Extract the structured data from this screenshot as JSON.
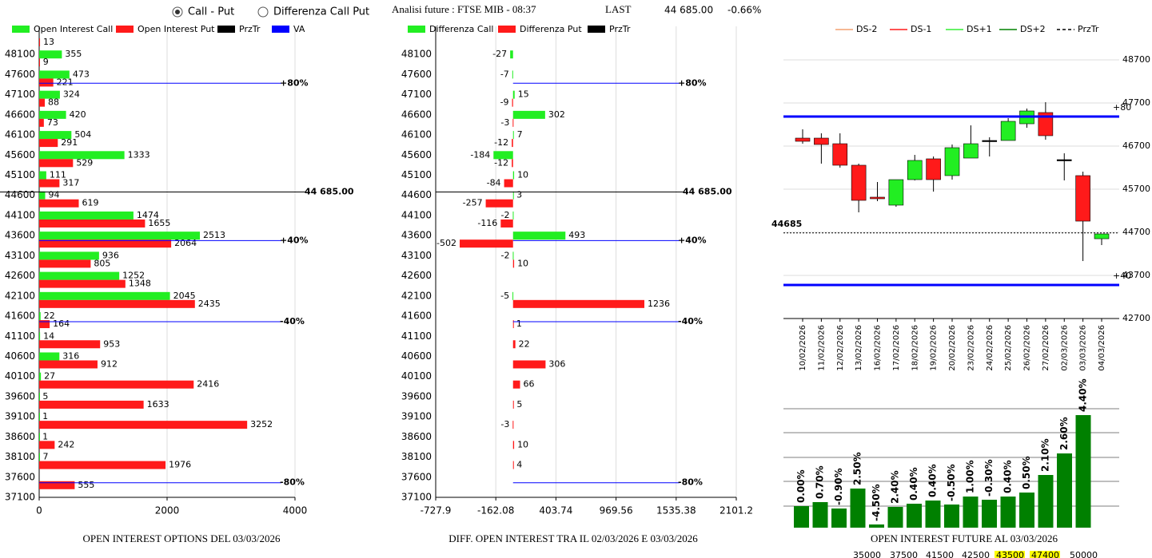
{
  "header": {
    "radio_options": [
      {
        "label": "Call - Put",
        "checked": true
      },
      {
        "label": "Differenza Call Put",
        "checked": false
      }
    ],
    "title": "Analisi future : FTSE MIB - 08:37",
    "last_label": "LAST",
    "last_value": "44 685.00",
    "change": "-0.66%"
  },
  "chart_data": [
    {
      "type": "hbar",
      "title": "OPEN INTEREST OPTIONS DEL 03/03/2026",
      "categories": [
        null,
        "48100",
        "47600",
        "47100",
        "46600",
        "46100",
        "45600",
        "45100",
        "44600",
        "44100",
        "43600",
        "43100",
        "42600",
        "42100",
        "41600",
        "41100",
        "40600",
        "40100",
        "39600",
        "39100",
        "38600",
        "38100",
        "37600",
        "37100"
      ],
      "series": [
        {
          "name": "Open Interest Call",
          "color": "#22ee22",
          "values": [
            null,
            355,
            473,
            324,
            420,
            504,
            1333,
            111,
            94,
            1474,
            2513,
            936,
            1252,
            2045,
            22,
            14,
            316,
            27,
            5,
            1,
            1,
            7,
            null,
            null
          ]
        },
        {
          "name": "Open Interest Put",
          "color": "#ff1a1a",
          "values": [
            13,
            9,
            221,
            88,
            73,
            291,
            529,
            317,
            619,
            1655,
            2064,
            805,
            1348,
            2435,
            164,
            953,
            912,
            2416,
            1633,
            3252,
            242,
            1976,
            555,
            null
          ]
        }
      ],
      "legend_extra": [
        {
          "name": "PrzTr",
          "color": "#000000"
        },
        {
          "name": "VA",
          "color": "#0000ff"
        }
      ],
      "xlim": [
        0,
        4000
      ],
      "xticks": [
        0,
        2000,
        4000
      ],
      "ylim": [
        37100,
        48600
      ],
      "grid": true,
      "ref_lines": [
        {
          "value": 47385,
          "label": "+80%",
          "color": "#0000ff"
        },
        {
          "value": 44685,
          "label": "44 685.00",
          "color": "#000000"
        },
        {
          "value": 43478,
          "label": "+40%",
          "color": "#0000ff"
        },
        {
          "value": 41462,
          "label": "-40%",
          "color": "#0000ff"
        },
        {
          "value": 37462,
          "label": "-80%",
          "color": "#0000ff"
        }
      ]
    },
    {
      "type": "hbar",
      "title": "DIFF. OPEN INTEREST TRA IL 02/03/2026 E 03/03/2026",
      "categories": [
        null,
        "48100",
        "47600",
        "47100",
        "46600",
        "46100",
        "45600",
        "45100",
        "44600",
        "44100",
        "43600",
        "43100",
        "42600",
        "42100",
        "41600",
        "41100",
        "40600",
        "40100",
        "39600",
        "39100",
        "38600",
        "38100",
        "37600",
        "37100"
      ],
      "series": [
        {
          "name": "Differenza Call",
          "color": "#22ee22",
          "values": [
            null,
            -27,
            -7,
            15,
            302,
            7,
            -184,
            10,
            3,
            -2,
            493,
            -2,
            null,
            -5,
            null,
            null,
            null,
            null,
            null,
            null,
            null,
            null,
            null,
            null
          ]
        },
        {
          "name": "Differenza Put",
          "color": "#ff1a1a",
          "values": [
            null,
            null,
            null,
            -9,
            -3,
            -12,
            -12,
            -84,
            -257,
            -116,
            -502,
            10,
            null,
            1236,
            1,
            22,
            306,
            66,
            5,
            -3,
            10,
            4,
            null,
            null
          ]
        }
      ],
      "legend_extra": [
        {
          "name": "PrzTr",
          "color": "#000000"
        }
      ],
      "xlim": [
        -727.9,
        2101.2
      ],
      "xticks": [
        -727.9,
        -162.08,
        403.74,
        969.56,
        1535.38,
        2101.2
      ],
      "ylim": [
        37100,
        48600
      ],
      "grid": true,
      "ref_lines": [
        {
          "value": 47385,
          "label": "+80%",
          "color": "#0000ff"
        },
        {
          "value": 44685,
          "label": "44 685.00",
          "color": "#000000"
        },
        {
          "value": 43478,
          "label": "+40%",
          "color": "#0000ff"
        },
        {
          "value": 41462,
          "label": "-40%",
          "color": "#0000ff"
        },
        {
          "value": 37462,
          "label": "-80%",
          "color": "#0000ff"
        }
      ]
    },
    {
      "type": "candlestick",
      "dates": [
        "10/02/2026",
        "11/02/2026",
        "12/02/2026",
        "13/02/2026",
        "16/02/2026",
        "17/02/2026",
        "18/02/2026",
        "19/02/2026",
        "20/02/2026",
        "23/02/2026",
        "24/02/2026",
        "25/02/2026",
        "26/02/2026",
        "27/02/2026",
        "02/03/2026",
        "03/03/2026",
        "04/03/2026"
      ],
      "open": [
        46885,
        46885,
        46755,
        46256,
        45515,
        45330,
        45922,
        46404,
        46015,
        46422,
        46830,
        46830,
        47218,
        47478,
        46385,
        46015,
        44551
      ],
      "high": [
        47089,
        46996,
        46996,
        46293,
        45867,
        45922,
        46496,
        46459,
        46737,
        47181,
        46904,
        47348,
        47570,
        47718,
        46533,
        46107,
        44663
      ],
      "low": [
        46755,
        46293,
        46200,
        45163,
        45422,
        45293,
        45904,
        45644,
        45922,
        46422,
        46459,
        46830,
        47126,
        46848,
        45904,
        44033,
        44403
      ],
      "close": [
        46811,
        46737,
        46256,
        45441,
        45478,
        45922,
        46367,
        45922,
        46663,
        46755,
        46830,
        47274,
        47515,
        46941,
        46385,
        44959,
        44663
      ],
      "up_color": "#22ee22",
      "down_color": "#ff1a1a",
      "ylim": [
        42700,
        48700
      ],
      "yticks": [
        48700,
        47700,
        46700,
        45700,
        44700,
        43700,
        42700
      ],
      "grid": true,
      "legend": [
        {
          "name": "DS-2",
          "color": "#f4a070",
          "dashed": false
        },
        {
          "name": "DS-1",
          "color": "#ff1a1a",
          "dashed": false
        },
        {
          "name": "DS+1",
          "color": "#33ee33",
          "dashed": false
        },
        {
          "name": "DS+2",
          "color": "#008000",
          "dashed": false
        },
        {
          "name": "PrzTr",
          "color": "#000000",
          "dashed": true
        }
      ],
      "ref_lines": [
        {
          "value": 47385,
          "label": "+80",
          "color": "#0000ff",
          "dashed": false
        },
        {
          "value": 43478,
          "label": "+40",
          "color": "#0000ff",
          "dashed": false
        },
        {
          "value": 44685,
          "label": "44685",
          "color": "#000000",
          "dashed": true
        }
      ]
    },
    {
      "type": "bar",
      "title": "OPEN INTEREST FUTURE AL 03/03/2026",
      "values": [
        27,
        32,
        24,
        49,
        4,
        26,
        30,
        34,
        29,
        39,
        35,
        39,
        44,
        66,
        93,
        141
      ],
      "annotations": [
        "0.00%",
        "0.70%",
        "-0.90%",
        "2.50%",
        "-4.50%",
        "2.40%",
        "0.40%",
        "0.40%",
        "-0.50%",
        "1.00%",
        "-0.30%",
        "0.40%",
        "0.50%",
        "2.10%",
        "2.60%",
        "4.40%"
      ],
      "color": "#008000"
    }
  ],
  "strip": {
    "values": [
      35000,
      37500,
      41500,
      42500,
      43500,
      47400,
      50000
    ],
    "highlight": [
      false,
      false,
      false,
      false,
      true,
      true,
      false
    ]
  }
}
